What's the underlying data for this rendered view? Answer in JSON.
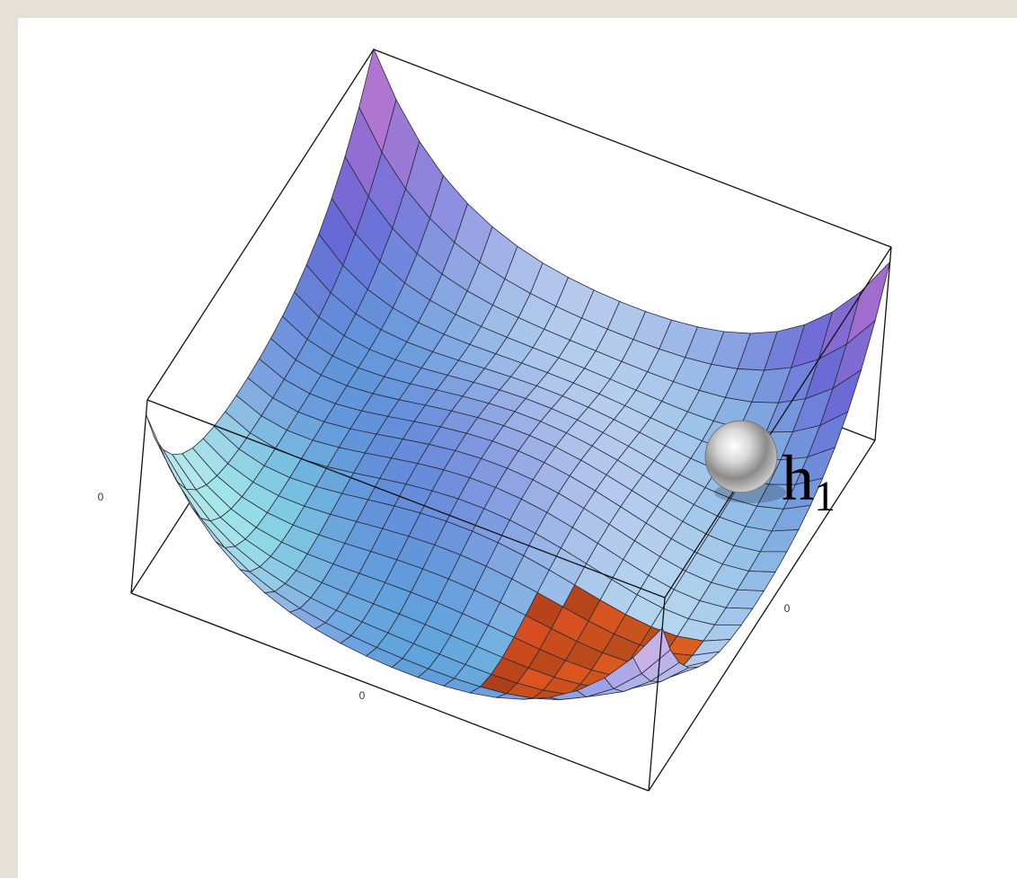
{
  "label": {
    "base": "h",
    "subscript": "1"
  },
  "axis_labels": [
    "0",
    "0",
    "0"
  ]
}
